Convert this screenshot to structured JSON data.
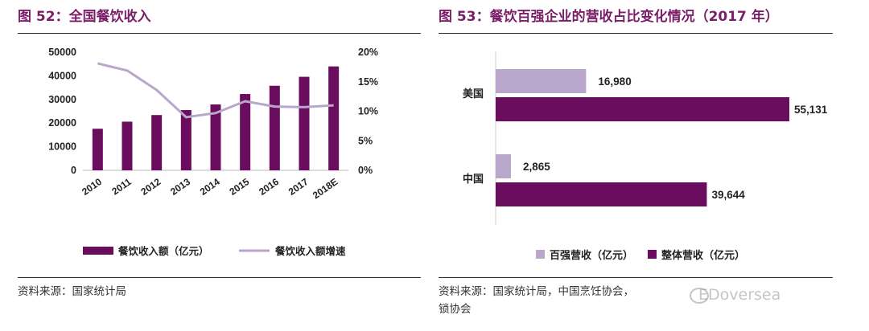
{
  "colors": {
    "title": "#7a1e68",
    "bar_dark": "#6b0d5e",
    "bar_light": "#b9a7cb",
    "line": "#b9a7cb"
  },
  "fig52": {
    "title": "图 52：全国餐饮收入",
    "source": "资料来源：国家统计局"
  },
  "fig53": {
    "title": "图 53：餐饮百强企业的营收占比变化情况（2017 年）",
    "source_line1": "资料来源：国家统计局，中国烹饪协会，",
    "source_line2": "锁协会"
  },
  "watermark": {
    "text": "EDoversea"
  },
  "chart_data": [
    {
      "type": "bar",
      "combo_line_series": "餐饮收入额增速",
      "categories": [
        "2010",
        "2011",
        "2012",
        "2013",
        "2014",
        "2015",
        "2016",
        "2017",
        "2018E"
      ],
      "series": [
        {
          "name": "餐饮收入额（亿元）",
          "kind": "bar",
          "axis": "left",
          "values": [
            17600,
            20600,
            23400,
            25500,
            27900,
            32300,
            35800,
            39600,
            44000
          ]
        },
        {
          "name": "餐饮收入额增速",
          "kind": "line",
          "axis": "right",
          "values": [
            0.181,
            0.169,
            0.136,
            0.09,
            0.097,
            0.117,
            0.108,
            0.107,
            0.11
          ]
        }
      ],
      "y_left": {
        "min": 0,
        "max": 50000,
        "ticks": [
          0,
          10000,
          20000,
          30000,
          40000,
          50000
        ]
      },
      "y_right": {
        "min": 0,
        "max": 0.2,
        "ticks": [
          "0%",
          "5%",
          "10%",
          "15%",
          "20%"
        ]
      },
      "legend": "bottom",
      "grid": false
    },
    {
      "type": "bar",
      "orientation": "horizontal",
      "categories": [
        "美国",
        "中国"
      ],
      "series": [
        {
          "name": "百强营收（亿元）",
          "values": [
            16980,
            2865
          ],
          "labels": [
            "16,980",
            "2,865"
          ]
        },
        {
          "name": "整体营收（亿元）",
          "values": [
            55131,
            39644
          ],
          "labels": [
            "55,131",
            "39,644"
          ]
        }
      ],
      "xlim": [
        0,
        55131
      ],
      "legend": "bottom",
      "grid": false
    }
  ]
}
